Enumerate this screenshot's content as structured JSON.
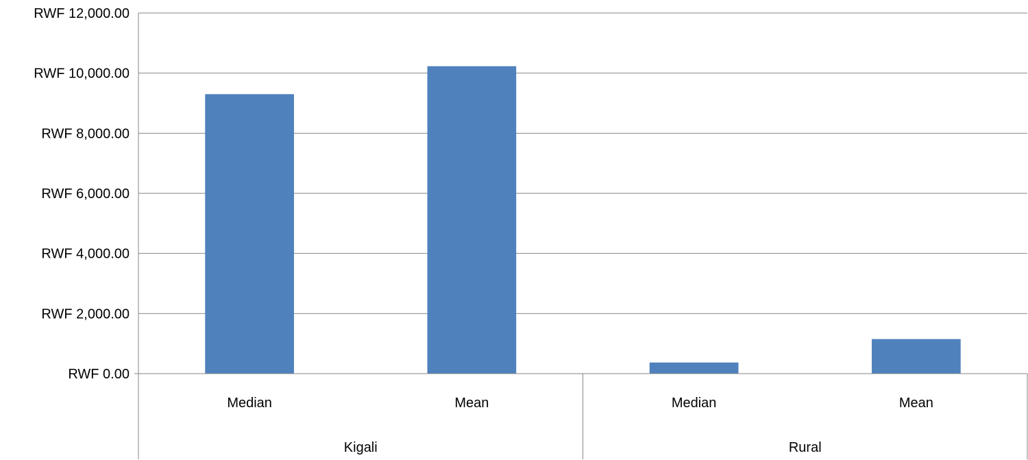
{
  "chart_data": {
    "type": "bar",
    "title": "",
    "xlabel": "",
    "ylabel": "",
    "categories": [
      "Median",
      "Mean",
      "Median",
      "Mean"
    ],
    "groups": [
      {
        "label": "Kigali",
        "categories": [
          "Median",
          "Mean"
        ]
      },
      {
        "label": "Rural",
        "categories": [
          "Median",
          "Mean"
        ]
      }
    ],
    "series": [
      {
        "values": [
          9300,
          10230,
          370,
          1150
        ],
        "color": "#4F81BD"
      }
    ],
    "ylim": [
      0,
      12000
    ],
    "yticks": [
      0,
      2000,
      4000,
      6000,
      8000,
      10000,
      12000
    ],
    "ytick_labels": [
      "RWF 0.00",
      "RWF 2,000.00",
      "RWF 4,000.00",
      "RWF 6,000.00",
      "RWF 8,000.00",
      "RWF 10,000.00",
      "RWF 12,000.00"
    ],
    "grid": true,
    "legend": "none"
  }
}
